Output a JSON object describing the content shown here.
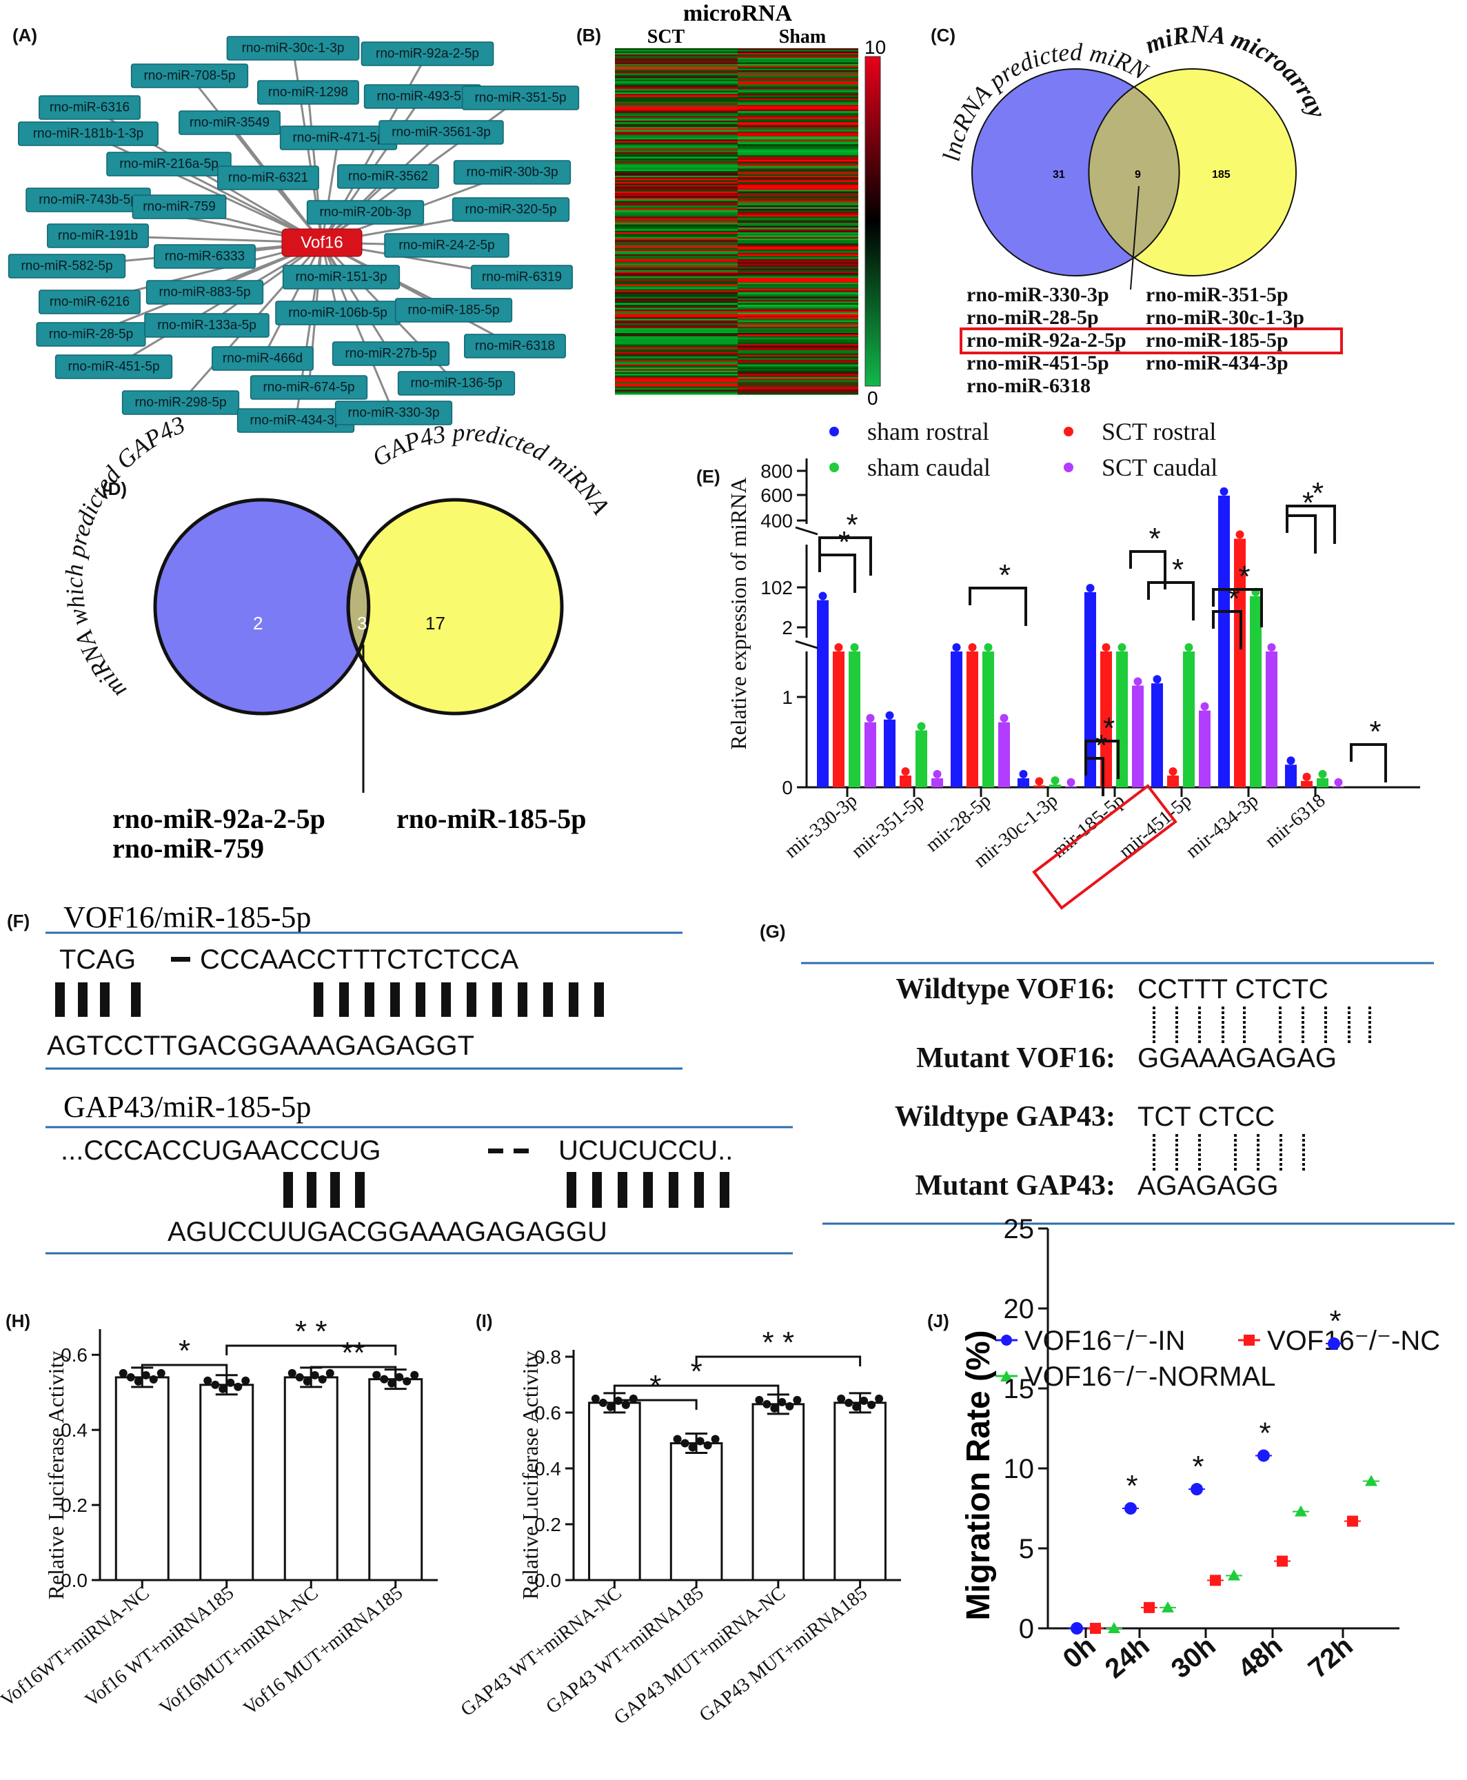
{
  "panels": {
    "A": {
      "label": "(A)",
      "hub": "Vof16",
      "nodes": [
        "rno-miR-30c-1-3p",
        "rno-miR-92a-2-5p",
        "rno-miR-708-5p",
        "rno-miR-1298",
        "rno-miR-493-5p",
        "rno-miR-351-5p",
        "rno-miR-6316",
        "rno-miR-3549",
        "rno-miR-471-5p",
        "rno-miR-3561-3p",
        "rno-miR-181b-1-3p",
        "rno-miR-216a-5p",
        "rno-miR-6321",
        "rno-miR-3562",
        "rno-miR-30b-3p",
        "rno-miR-743b-5p",
        "rno-miR-759",
        "rno-miR-20b-3p",
        "rno-miR-320-5p",
        "rno-miR-191b",
        "rno-miR-6333",
        "rno-miR-24-2-5p",
        "rno-miR-582-5p",
        "rno-miR-151-3p",
        "rno-miR-6319",
        "rno-miR-6216",
        "rno-miR-883-5p",
        "rno-miR-106b-5p",
        "rno-miR-185-5p",
        "rno-miR-28-5p",
        "rno-miR-133a-5p",
        "rno-miR-6318",
        "rno-miR-451-5p",
        "rno-miR-466d",
        "rno-miR-27b-5p",
        "rno-miR-674-5p",
        "rno-miR-136-5p",
        "rno-miR-298-5p",
        "rno-miR-434-3p",
        "rno-miR-330-3p"
      ]
    },
    "B": {
      "label": "(B)",
      "title": "microRNA",
      "col1": "SCT",
      "col2": "Sham",
      "scale_max": "10",
      "scale_min": "0"
    },
    "C": {
      "label": "(C)",
      "set1": "lncRNA predicted miRNA",
      "set2": "miRNA microarray",
      "n1": "31",
      "n_both": "9",
      "n2": "185",
      "list": [
        [
          "rno-miR-330-3p",
          "rno-miR-351-5p"
        ],
        [
          "rno-miR-28-5p",
          "rno-miR-30c-1-3p"
        ],
        [
          "rno-miR-92a-2-5p",
          "rno-miR-185-5p"
        ],
        [
          "rno-miR-451-5p",
          "rno-miR-434-3p"
        ],
        [
          "rno-miR-6318",
          ""
        ]
      ]
    },
    "D": {
      "label": "(D)",
      "set1": "miRNA which predicted GAP43",
      "set2": "GAP43 predicted miRNA",
      "n1": "2",
      "n_both": "3",
      "n2": "17",
      "list1": "rno-miR-92a-2-5p",
      "list2": "rno-miR-185-5p",
      "list3": "rno-miR-759"
    },
    "E": {
      "label": "(E)",
      "legend": [
        "sham rostral",
        "SCT rostral",
        "sham caudal",
        "SCT caudal"
      ],
      "ylabel": "Relative expression of miRNA",
      "yticks_top": [
        "800",
        "600",
        "400"
      ],
      "yticks_mid": [
        "102",
        "2"
      ],
      "yticks_low": [
        "1",
        "0"
      ],
      "categories": [
        "mir-330-3p",
        "mir-351-5p",
        "mir-28-5p",
        "mir-30c-1-3p",
        "mir-185-5p",
        "mir-451-5p",
        "mir-434-3p",
        "mir-6318"
      ]
    },
    "F": {
      "label": "(F)",
      "title1": "VOF16/miR-185-5p",
      "seq1a": "TCAG",
      "seq1b": "CCCAACCTTTCTCTCCA",
      "seq1c": "AGTCCTTGACGGAAAGAGAGGT",
      "title2": "GAP43/miR-185-5p",
      "seq2a": "...CCCACCUGAACCCUG",
      "seq2b": "UCUCUCCU..",
      "seq2c": "AGUCCUUGACGGAAAGAGAGGU"
    },
    "G": {
      "label": "(G)",
      "rows": [
        {
          "name": "Wildtype VOF16:",
          "seq": "CCTTT CTCTC"
        },
        {
          "name": "Mutant VOF16:",
          "seq": "GGAAAGAGAG"
        },
        {
          "name": "Wildtype GAP43:",
          "seq": "TCT CTCC"
        },
        {
          "name": "Mutant GAP43:",
          "seq": "AGAGAGG"
        }
      ]
    },
    "H": {
      "label": "(H)",
      "ylabel": "Relative Luciferase Activity",
      "yticks": [
        "0.6",
        "0.4",
        "0.2",
        "0.0"
      ],
      "categories": [
        "Vof16WT+miRNA-NC",
        "Vof16 WT+miRNA185",
        "Vof16MUT+miRNA-NC",
        "Vof16 MUT+miRNA185"
      ]
    },
    "I": {
      "label": "(I)",
      "ylabel": "Relative Luciferase Activity",
      "yticks": [
        "0.8",
        "0.6",
        "0.4",
        "0.2",
        "0.0"
      ],
      "categories": [
        "GAP43 WT+miRNA-NC",
        "GAP43 WT+miRNA185",
        "GAP43 MUT+miRNA-NC",
        "GAP43 MUT+miRNA185"
      ]
    },
    "J": {
      "label": "(J)",
      "legend": [
        "VOF16⁻/⁻-IN",
        "VOF16⁻/⁻-NC",
        "VOF16⁻/⁻-NORMAL"
      ],
      "ylabel": "Migration Rate (%)",
      "yticks": [
        "25",
        "20",
        "15",
        "10",
        "5",
        "0"
      ],
      "categories": [
        "0h",
        "24h",
        "30h",
        "48h",
        "72h"
      ]
    }
  },
  "colors": {
    "blue": "#1a1aff",
    "red": "#ff1a1a",
    "green": "#1fcc3a",
    "purple": "#b23cff",
    "teal": "#1f8f9a",
    "venn_blue": "#7b7bf5",
    "venn_yellow": "#fafa6e",
    "venn_overlap": "#b9b47a"
  },
  "chart_data": [
    {
      "panel": "E",
      "type": "bar",
      "categories": [
        "mir-330-3p",
        "mir-351-5p",
        "mir-28-5p",
        "mir-30c-1-3p",
        "mir-185-5p",
        "mir-451-5p",
        "mir-434-3p",
        "mir-6318"
      ],
      "series": [
        {
          "name": "sham rostral",
          "values": [
            70,
            0.75,
            2,
            0.1,
            90,
            1.3,
            500,
            0.25
          ]
        },
        {
          "name": "SCT rostral",
          "values": [
            2,
            0.13,
            2,
            0.02,
            2,
            0.13,
            150,
            0.07
          ]
        },
        {
          "name": "sham caudal",
          "values": [
            2,
            0.63,
            2,
            0.03,
            2,
            2,
            80,
            0.1
          ]
        },
        {
          "name": "SCT caudal",
          "values": [
            0.72,
            0.1,
            0.72,
            0.01,
            1.25,
            0.85,
            2,
            0.01
          ]
        }
      ],
      "yscale": "broken"
    },
    {
      "panel": "H",
      "type": "bar",
      "categories": [
        "Vof16WT+miRNA-NC",
        "Vof16 WT+miRNA185",
        "Vof16MUT+miRNA-NC",
        "Vof16 MUT+miRNA185"
      ],
      "values": [
        0.54,
        0.52,
        0.54,
        0.535
      ],
      "ylim": [
        0,
        0.6
      ]
    },
    {
      "panel": "I",
      "type": "bar",
      "categories": [
        "GAP43 WT+miRNA-NC",
        "GAP43 WT+miRNA185",
        "GAP43 MUT+miRNA-NC",
        "GAP43 MUT+miRNA185"
      ],
      "values": [
        0.635,
        0.49,
        0.63,
        0.635
      ],
      "ylim": [
        0,
        0.8
      ]
    },
    {
      "panel": "J",
      "type": "scatter",
      "categories": [
        "0h",
        "24h",
        "30h",
        "48h",
        "72h"
      ],
      "series": [
        {
          "name": "VOF16⁻/⁻-IN",
          "values": [
            0,
            7.5,
            8.7,
            10.8,
            17.8
          ]
        },
        {
          "name": "VOF16⁻/⁻-NC",
          "values": [
            0,
            1.3,
            3.0,
            4.2,
            6.7
          ]
        },
        {
          "name": "VOF16⁻/⁻-NORMAL",
          "values": [
            0,
            1.3,
            3.3,
            7.3,
            9.2
          ]
        }
      ],
      "ylim": [
        0,
        25
      ]
    }
  ]
}
